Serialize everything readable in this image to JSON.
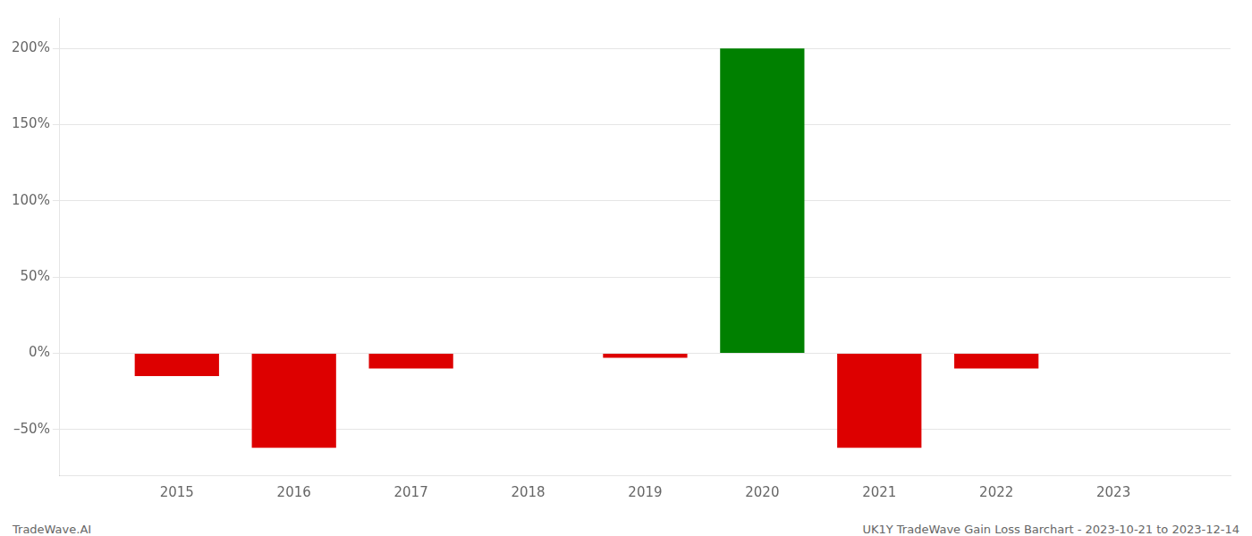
{
  "chart_data": {
    "type": "bar",
    "x": [
      2015,
      2016,
      2017,
      2018,
      2019,
      2020,
      2021,
      2022,
      2023
    ],
    "values": [
      -15.0,
      -62.0,
      -10.0,
      0.0,
      -3.0,
      200.0,
      -62.0,
      -10.0,
      0.0
    ],
    "colors": [
      "#dd0000",
      "#dd0000",
      "#dd0000",
      "#dd0000",
      "#dd0000",
      "#008000",
      "#dd0000",
      "#dd0000",
      "#dd0000"
    ],
    "xlim": [
      2014,
      2024
    ],
    "xticks": [
      2015,
      2016,
      2017,
      2018,
      2019,
      2020,
      2021,
      2022,
      2023
    ],
    "ylim": [
      -80,
      220
    ],
    "yticks": [
      {
        "value": -50,
        "label": "–50%"
      },
      {
        "value": 0,
        "label": "0%"
      },
      {
        "value": 50,
        "label": "50%"
      },
      {
        "value": 100,
        "label": "100%"
      },
      {
        "value": 150,
        "label": "150%"
      },
      {
        "value": 200,
        "label": "200%"
      }
    ],
    "grid": true,
    "annotations": [
      "TradeWave.AI",
      "UK1Y TradeWave Gain Loss Barchart - 2023-10-21 to 2023-12-14"
    ]
  }
}
